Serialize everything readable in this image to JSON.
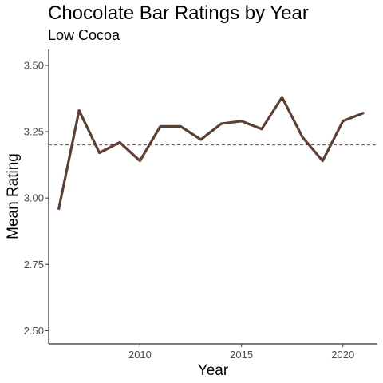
{
  "chart_data": {
    "type": "line",
    "title": "Chocolate Bar Ratings by Year",
    "subtitle": "Low Cocoa",
    "xlabel": "Year",
    "ylabel": "Mean Rating",
    "xlim": [
      2005.5,
      2021.7
    ],
    "ylim": [
      2.45,
      3.56
    ],
    "x_ticks": [
      2010,
      2015,
      2020
    ],
    "y_ticks": [
      2.5,
      2.75,
      3.0,
      3.25,
      3.5
    ],
    "y_tick_labels": [
      "2.50",
      "2.75",
      "3.00",
      "3.25",
      "3.50"
    ],
    "grid": false,
    "series": [
      {
        "color": "#5c4033",
        "x": [
          2006,
          2007,
          2008,
          2009,
          2010,
          2011,
          2012,
          2013,
          2014,
          2015,
          2016,
          2017,
          2018,
          2019,
          2020,
          2021
        ],
        "values": [
          2.96,
          3.33,
          3.17,
          3.21,
          3.14,
          3.27,
          3.27,
          3.22,
          3.28,
          3.29,
          3.26,
          3.38,
          3.23,
          3.14,
          3.29,
          3.32
        ]
      }
    ],
    "reference_line": {
      "y": 3.2,
      "color": "#e41a1c",
      "style": "dashed"
    }
  }
}
